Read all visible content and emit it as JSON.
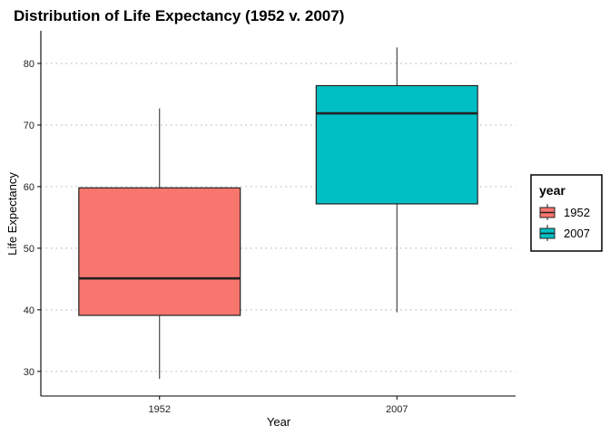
{
  "chart_data": {
    "type": "box",
    "title": "Distribution of Life Expectancy (1952 v. 2007)",
    "xlabel": "Year",
    "ylabel": "Life Expectancy",
    "categories": [
      "1952",
      "2007"
    ],
    "yticks": [
      30,
      40,
      50,
      60,
      70,
      80
    ],
    "ylim": [
      26,
      85.3
    ],
    "grid": "horizontal-dotted",
    "legend": {
      "title": "year",
      "placement": "right",
      "entries": [
        {
          "label": "1952",
          "color": "#F8766D"
        },
        {
          "label": "2007",
          "color": "#00BFC4"
        }
      ]
    },
    "boxes": [
      {
        "category": "1952",
        "min": 28.8,
        "q1": 39.1,
        "median": 45.1,
        "q3": 59.8,
        "max": 72.7,
        "color": "#F8766D"
      },
      {
        "category": "2007",
        "min": 39.6,
        "q1": 57.2,
        "median": 71.9,
        "q3": 76.4,
        "max": 82.6,
        "color": "#00BFC4"
      }
    ]
  }
}
